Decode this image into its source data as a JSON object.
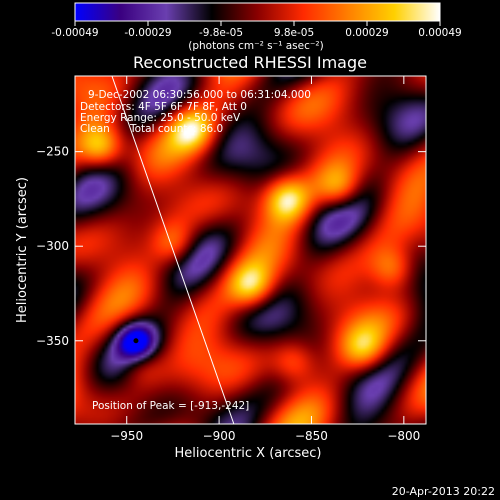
{
  "colorbar": {
    "ticks": [
      "-0.00049",
      "-0.00029",
      "-9.8e-05",
      "9.8e-05",
      "0.00029",
      "0.00049"
    ],
    "unit_label": "(photons cm⁻² s⁻¹ asec⁻²)",
    "colors": [
      "#0000ff",
      "#3a0080",
      "#6a3fb0",
      "#000000",
      "#8a0000",
      "#ff2a00",
      "#ff8000",
      "#ffd000",
      "#ffffff"
    ]
  },
  "chart_data": {
    "type": "heatmap",
    "title": "Reconstructed RHESSI Image",
    "xlabel": "Heliocentric X (arcsec)",
    "ylabel": "Heliocentric Y (arcsec)",
    "xlim": [
      -978,
      -788
    ],
    "ylim": [
      -394,
      -210
    ],
    "x_ticks": [
      -950,
      -900,
      -850,
      -800
    ],
    "y_ticks": [
      -250,
      -300,
      -350
    ],
    "value_range": [
      -0.00049,
      0.00049
    ],
    "annotations": {
      "time": "9-Dec-2002 06:30:56.000 to 06:31:04.000",
      "detectors": "Detectors: 4F 5F 6F 7F 8F, Att 0",
      "energy": "Energy Range: 25.0 - 50.0 keV",
      "method": "Clean",
      "counts": "Total counts: 86.0",
      "peak": "Position of Peak = [-913,-242]"
    },
    "peak_position": [
      -913,
      -242
    ],
    "min_marker": [
      -945,
      -350
    ],
    "limb_line": [
      [
        -958,
        -210
      ],
      [
        -892,
        -394
      ]
    ]
  },
  "footer": {
    "timestamp": "20-Apr-2013 20:22"
  }
}
